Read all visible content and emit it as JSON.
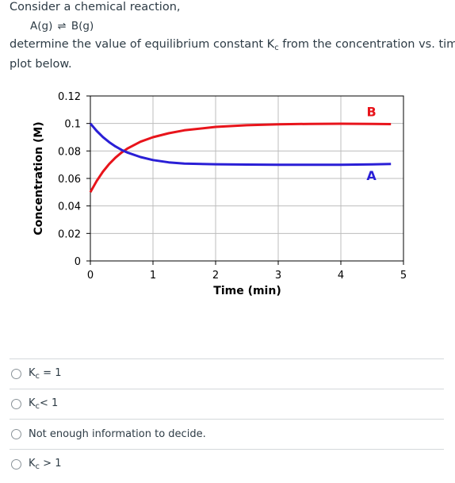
{
  "question": {
    "intro": "Consider a chemical reaction,",
    "reaction_left": "A(g)",
    "reaction_arrow": "⇌",
    "reaction_right": "B(g)",
    "task_before": "determine the value of equilibrium constant K",
    "task_sub": "c",
    "task_after": " from the concentration vs. time",
    "task_line2": "plot below."
  },
  "chart_data": {
    "type": "line",
    "title": "",
    "xlabel": "Time (min)",
    "ylabel": "Concentration (M)",
    "xlim": [
      0,
      5
    ],
    "ylim": [
      0,
      0.12
    ],
    "x_ticks": [
      "0",
      "1",
      "2",
      "3",
      "4",
      "5"
    ],
    "y_ticks": [
      "0",
      "0.02",
      "0.04",
      "0.06",
      "0.08",
      "0.1",
      "0.12"
    ],
    "grid": true,
    "series": [
      {
        "name": "B",
        "color": "#e8141b",
        "x": [
          0,
          0.1,
          0.2,
          0.3,
          0.4,
          0.5,
          0.6,
          0.8,
          1.0,
          1.25,
          1.5,
          2.0,
          2.5,
          3.0,
          3.5,
          4.0,
          4.5,
          4.8
        ],
        "y": [
          0.05,
          0.0581,
          0.0649,
          0.0705,
          0.0751,
          0.0789,
          0.082,
          0.0867,
          0.09,
          0.0929,
          0.095,
          0.0975,
          0.0987,
          0.0994,
          0.0997,
          0.0998,
          0.0997,
          0.0995
        ]
      },
      {
        "name": "A",
        "color": "#2a1fd6",
        "x": [
          0,
          0.1,
          0.2,
          0.3,
          0.4,
          0.5,
          0.6,
          0.8,
          1.0,
          1.25,
          1.5,
          2.0,
          2.5,
          3.0,
          3.5,
          4.0,
          4.5,
          4.8
        ],
        "y": [
          0.1,
          0.0946,
          0.0901,
          0.0864,
          0.0833,
          0.0807,
          0.0787,
          0.0756,
          0.0734,
          0.0717,
          0.0708,
          0.0703,
          0.0701,
          0.07,
          0.07,
          0.07,
          0.0702,
          0.0705
        ]
      }
    ],
    "annotations": [
      {
        "text": "B",
        "color": "#e8141b"
      },
      {
        "text": "A",
        "color": "#2a1fd6"
      }
    ]
  },
  "options": [
    {
      "label": "K",
      "sub": "c",
      "rest": " = 1"
    },
    {
      "label": "K",
      "sub": "c",
      "rest": "< 1"
    },
    {
      "label": "Not enough information to decide.",
      "sub": "",
      "rest": ""
    },
    {
      "label": "K",
      "sub": "c",
      "rest": " > 1"
    }
  ]
}
